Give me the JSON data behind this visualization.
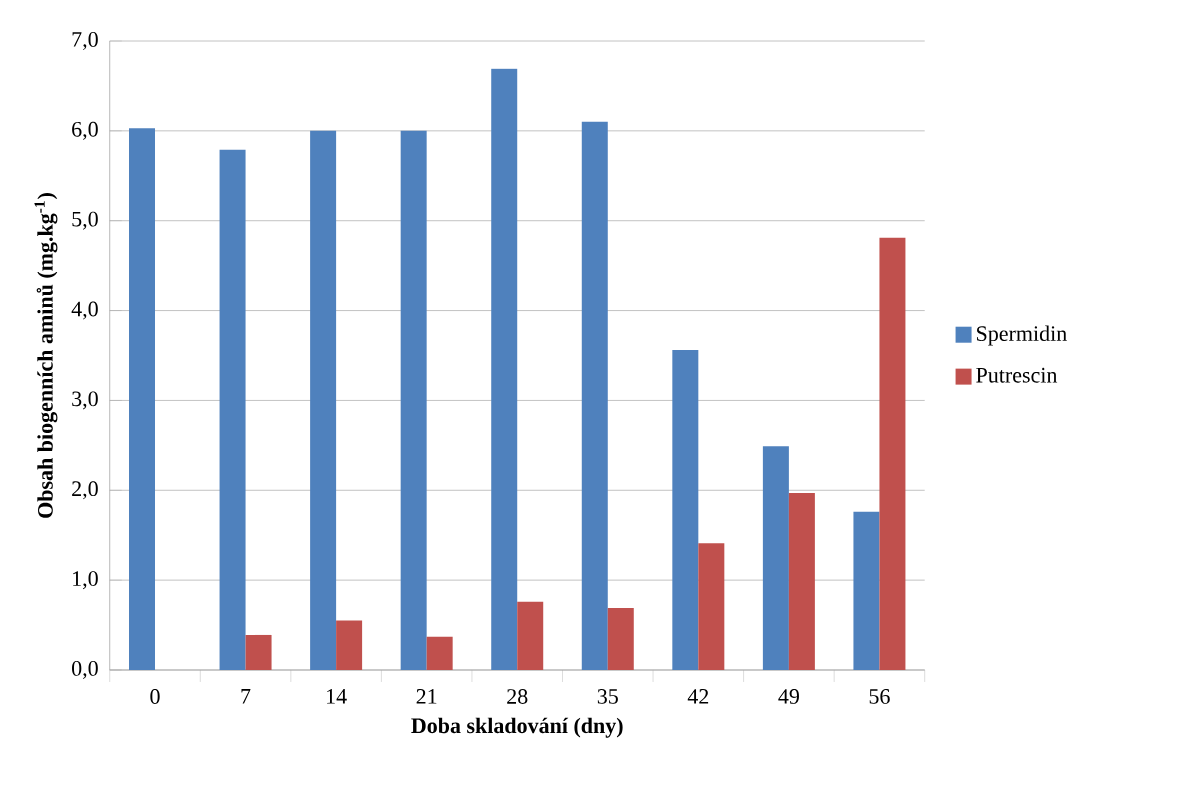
{
  "chart_data": {
    "type": "bar",
    "xlabel": "Doba skladování (dny)",
    "ylabel": "Obsah biogenních aminů (mg.kg$^{-1}$)",
    "categories": [
      "0",
      "7",
      "14",
      "21",
      "28",
      "35",
      "42",
      "49",
      "56"
    ],
    "series": [
      {
        "name": "Spermidin",
        "color": "#4f81bd",
        "values": [
          6.03,
          5.79,
          6.0,
          6.0,
          6.69,
          6.1,
          3.56,
          2.49,
          1.76
        ]
      },
      {
        "name": "Putrescin",
        "color": "#c0504d",
        "values": [
          0,
          0.39,
          0.55,
          0.37,
          0.76,
          0.69,
          1.41,
          1.97,
          4.81
        ]
      }
    ],
    "ylim": [
      0,
      7
    ],
    "yticks": [
      {
        "value": 0,
        "label": "0,0"
      },
      {
        "value": 1,
        "label": "1,0"
      },
      {
        "value": 2,
        "label": "2,0"
      },
      {
        "value": 3,
        "label": "3,0"
      },
      {
        "value": 4,
        "label": "4,0"
      },
      {
        "value": 5,
        "label": "5,0"
      },
      {
        "value": 6,
        "label": "6,0"
      },
      {
        "value": 7,
        "label": "7,0"
      }
    ],
    "grid": "y",
    "legend": "right"
  }
}
